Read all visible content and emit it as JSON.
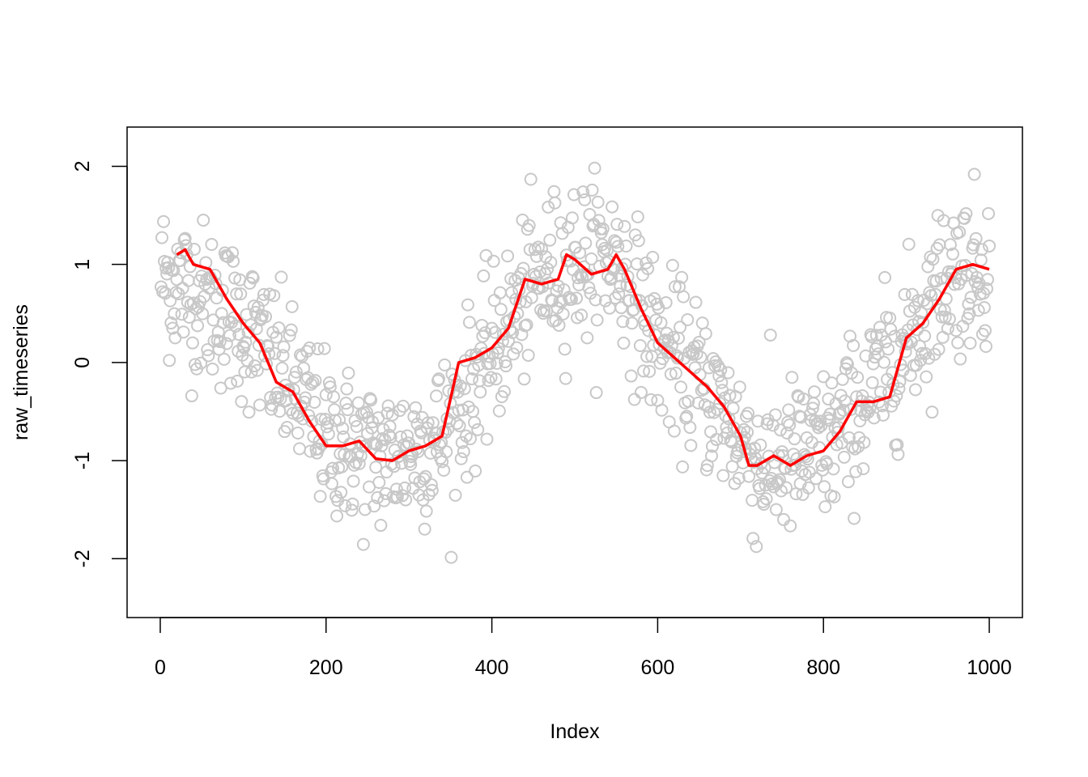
{
  "chart_data": {
    "type": "scatter",
    "title": "",
    "xlabel": "Index",
    "ylabel": "raw_timeseries",
    "xlim": [
      -40,
      1040
    ],
    "ylim": [
      -2.6,
      2.4
    ],
    "xticks": [
      0,
      200,
      400,
      600,
      800,
      1000
    ],
    "yticks": [
      -2,
      -1,
      0,
      1,
      2
    ],
    "grid": false,
    "legend": "none",
    "n_points": 1000,
    "colors": {
      "points": "#c8c8c8",
      "smooth_line": "#ff0000",
      "axes": "#000000"
    },
    "series": [
      {
        "kind": "points",
        "x_range": [
          1,
          1000
        ],
        "underlying_curve": [
          [
            0,
            0.9
          ],
          [
            100,
            0.4
          ],
          [
            200,
            -0.75
          ],
          [
            260,
            -1.0
          ],
          [
            300,
            -0.9
          ],
          [
            340,
            -0.75
          ],
          [
            400,
            0.1
          ],
          [
            450,
            0.8
          ],
          [
            500,
            1.05
          ],
          [
            550,
            1.05
          ],
          [
            600,
            0.2
          ],
          [
            650,
            -0.2
          ],
          [
            700,
            -0.75
          ],
          [
            720,
            -1.05
          ],
          [
            760,
            -1.0
          ],
          [
            800,
            -0.9
          ],
          [
            850,
            -0.4
          ],
          [
            900,
            0.2
          ],
          [
            950,
            0.9
          ],
          [
            1000,
            1.0
          ]
        ],
        "spread_sd": 0.4
      },
      {
        "kind": "line",
        "x": [
          20,
          30,
          40,
          60,
          80,
          100,
          120,
          140,
          160,
          180,
          200,
          220,
          240,
          260,
          280,
          300,
          320,
          340,
          360,
          380,
          400,
          420,
          440,
          460,
          480,
          490,
          500,
          520,
          540,
          550,
          560,
          580,
          600,
          620,
          640,
          660,
          680,
          700,
          710,
          720,
          740,
          760,
          780,
          800,
          820,
          840,
          860,
          880,
          900,
          920,
          940,
          960,
          980,
          1000
        ],
        "y": [
          1.1,
          1.15,
          1.0,
          0.95,
          0.65,
          0.4,
          0.2,
          -0.2,
          -0.3,
          -0.6,
          -0.85,
          -0.85,
          -0.8,
          -0.98,
          -1.0,
          -0.9,
          -0.85,
          -0.75,
          0.0,
          0.05,
          0.15,
          0.35,
          0.85,
          0.8,
          0.85,
          1.1,
          1.05,
          0.9,
          0.95,
          1.1,
          0.95,
          0.55,
          0.2,
          0.05,
          -0.1,
          -0.25,
          -0.45,
          -0.75,
          -1.05,
          -1.05,
          -0.95,
          -1.05,
          -0.95,
          -0.9,
          -0.7,
          -0.4,
          -0.4,
          -0.35,
          0.25,
          0.4,
          0.65,
          0.95,
          1.0,
          0.95
        ]
      }
    ]
  }
}
